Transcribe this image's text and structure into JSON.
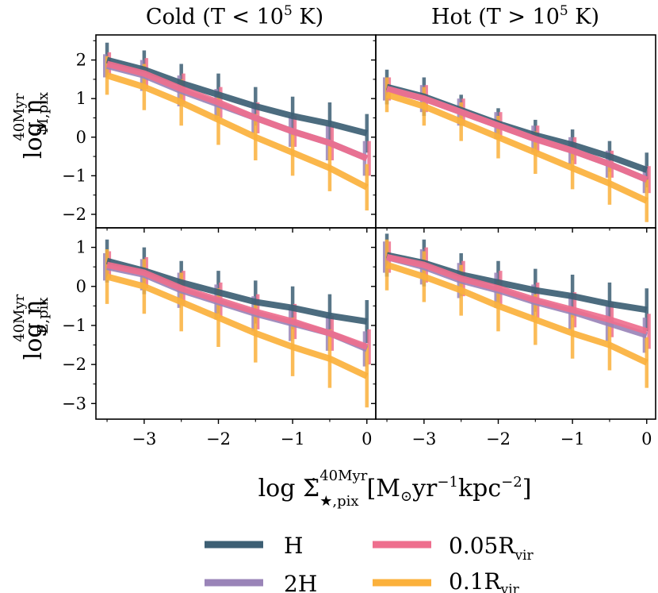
{
  "chart_data": {
    "type": "line",
    "layout": "2x2 grid of panels with shared x axis and row-shared y axes",
    "columns": [
      {
        "title_main": "Cold (T < 10",
        "title_sup": "5",
        "title_end": " K)"
      },
      {
        "title_main": "Hot (T > 10",
        "title_sup": "5",
        "title_end": " K)"
      }
    ],
    "rows": [
      {
        "ylabel_main": "log η",
        "ylabel_sup": "40Myr",
        "ylabel_sub": "M,pix",
        "ylim": [
          -2.35,
          2.65
        ],
        "yticks": [
          -2,
          -1,
          0,
          1,
          2
        ]
      },
      {
        "ylabel_main": "log η",
        "ylabel_sup": "40Myr",
        "ylabel_sub": "E,pix",
        "ylim": [
          -3.4,
          1.5
        ],
        "yticks": [
          -3,
          -2,
          -1,
          0,
          1
        ]
      }
    ],
    "xlabel_main": "log Σ̇",
    "xlabel_sup": "40Myr",
    "xlabel_sub": "★,pix",
    "xlabel_units_pre": "[M",
    "xlabel_units_sun": "⊙",
    "xlabel_units_mid1": "yr",
    "xlabel_units_exp1": "−1",
    "xlabel_units_mid2": "kpc",
    "xlabel_units_exp2": "−2",
    "xlabel_units_end": "]",
    "xlim": [
      -3.65,
      0.12
    ],
    "xticks": [
      -3,
      -2,
      -1,
      0
    ],
    "tick_labels_x": [
      "−3",
      "−2",
      "−1",
      "0"
    ],
    "tick_labels_y_top": [
      "−2",
      "−1",
      "0",
      "1",
      "2"
    ],
    "tick_labels_y_bottom": [
      "−3",
      "−2",
      "−1",
      "0",
      "1"
    ],
    "x": [
      -3.5,
      -3.0,
      -2.5,
      -2.0,
      -1.5,
      -1.0,
      -0.5,
      0.0
    ],
    "series_styles": [
      {
        "key": "H",
        "color": "#3d5f74",
        "offset": 0.0
      },
      {
        "key": "2H",
        "color": "#9a84b8",
        "offset": -0.03
      },
      {
        "key": "0.05Rvir",
        "color": "#ee6f8e",
        "offset": 0.03
      },
      {
        "key": "0.1Rvir",
        "color": "#fbb13c",
        "offset": 0.0
      }
    ],
    "panels": [
      {
        "row": 0,
        "col": 0,
        "series": [
          {
            "key": "H",
            "y": [
              2.0,
              1.75,
              1.4,
              1.1,
              0.8,
              0.55,
              0.35,
              0.1
            ],
            "err": [
              0.45,
              0.5,
              0.5,
              0.55,
              0.5,
              0.5,
              0.55,
              0.5
            ]
          },
          {
            "key": "2H",
            "y": [
              1.85,
              1.6,
              1.2,
              0.85,
              0.5,
              0.15,
              -0.15,
              -0.55
            ],
            "err": [
              0.3,
              0.4,
              0.4,
              0.4,
              0.4,
              0.4,
              0.45,
              0.45
            ]
          },
          {
            "key": "0.05Rvir",
            "y": [
              1.9,
              1.65,
              1.25,
              0.9,
              0.5,
              0.15,
              -0.15,
              -0.55
            ],
            "err": [
              0.3,
              0.4,
              0.4,
              0.4,
              0.4,
              0.4,
              0.45,
              0.45
            ]
          },
          {
            "key": "0.1Rvir",
            "y": [
              1.6,
              1.3,
              0.9,
              0.45,
              0.0,
              -0.4,
              -0.8,
              -1.3
            ],
            "err": [
              0.5,
              0.6,
              0.6,
              0.65,
              0.6,
              0.6,
              0.6,
              0.6
            ]
          }
        ]
      },
      {
        "row": 0,
        "col": 1,
        "series": [
          {
            "key": "H",
            "y": [
              1.3,
              1.05,
              0.7,
              0.35,
              0.05,
              -0.2,
              -0.5,
              -0.85
            ],
            "err": [
              0.45,
              0.5,
              0.4,
              0.4,
              0.4,
              0.4,
              0.4,
              0.45
            ]
          },
          {
            "key": "2H",
            "y": [
              1.25,
              1.0,
              0.65,
              0.3,
              -0.05,
              -0.35,
              -0.7,
              -1.1
            ],
            "err": [
              0.3,
              0.35,
              0.35,
              0.35,
              0.35,
              0.35,
              0.35,
              0.35
            ]
          },
          {
            "key": "0.05Rvir",
            "y": [
              1.25,
              1.0,
              0.65,
              0.3,
              -0.05,
              -0.35,
              -0.7,
              -1.1
            ],
            "err": [
              0.3,
              0.35,
              0.35,
              0.35,
              0.35,
              0.35,
              0.35,
              0.35
            ]
          },
          {
            "key": "0.1Rvir",
            "y": [
              1.1,
              0.8,
              0.4,
              0.0,
              -0.4,
              -0.8,
              -1.2,
              -1.65
            ],
            "err": [
              0.45,
              0.5,
              0.5,
              0.55,
              0.55,
              0.55,
              0.55,
              0.55
            ]
          }
        ]
      },
      {
        "row": 1,
        "col": 0,
        "series": [
          {
            "key": "H",
            "y": [
              0.65,
              0.4,
              0.1,
              -0.15,
              -0.4,
              -0.55,
              -0.75,
              -0.9
            ],
            "err": [
              0.55,
              0.6,
              0.55,
              0.55,
              0.55,
              0.55,
              0.55,
              0.55
            ]
          },
          {
            "key": "2H",
            "y": [
              0.5,
              0.3,
              -0.1,
              -0.4,
              -0.7,
              -0.95,
              -1.2,
              -1.6
            ],
            "err": [
              0.35,
              0.4,
              0.45,
              0.45,
              0.45,
              0.45,
              0.45,
              0.45
            ]
          },
          {
            "key": "0.05Rvir",
            "y": [
              0.55,
              0.35,
              -0.05,
              -0.35,
              -0.65,
              -0.9,
              -1.2,
              -1.55
            ],
            "err": [
              0.35,
              0.4,
              0.45,
              0.45,
              0.45,
              0.45,
              0.45,
              0.45
            ]
          },
          {
            "key": "0.1Rvir",
            "y": [
              0.25,
              0.0,
              -0.4,
              -0.8,
              -1.2,
              -1.55,
              -1.85,
              -2.3
            ],
            "err": [
              0.7,
              0.7,
              0.75,
              0.75,
              0.75,
              0.75,
              0.75,
              0.8
            ]
          }
        ]
      },
      {
        "row": 1,
        "col": 1,
        "series": [
          {
            "key": "H",
            "y": [
              0.8,
              0.6,
              0.3,
              0.1,
              -0.1,
              -0.25,
              -0.45,
              -0.6
            ],
            "err": [
              0.55,
              0.6,
              0.55,
              0.55,
              0.55,
              0.55,
              0.55,
              0.55
            ]
          },
          {
            "key": "2H",
            "y": [
              0.75,
              0.5,
              0.15,
              -0.1,
              -0.4,
              -0.65,
              -0.95,
              -1.25
            ],
            "err": [
              0.4,
              0.45,
              0.45,
              0.45,
              0.45,
              0.45,
              0.45,
              0.45
            ]
          },
          {
            "key": "0.05Rvir",
            "y": [
              0.75,
              0.55,
              0.2,
              -0.05,
              -0.35,
              -0.6,
              -0.85,
              -1.15
            ],
            "err": [
              0.4,
              0.45,
              0.45,
              0.45,
              0.45,
              0.45,
              0.45,
              0.45
            ]
          },
          {
            "key": "0.1Rvir",
            "y": [
              0.55,
              0.25,
              -0.1,
              -0.5,
              -0.85,
              -1.2,
              -1.5,
              -1.95
            ],
            "err": [
              0.65,
              0.65,
              0.65,
              0.65,
              0.65,
              0.65,
              0.65,
              0.65
            ]
          }
        ]
      }
    ],
    "legend": [
      {
        "key": "H",
        "label_main": "H",
        "label_sub": "",
        "color": "#3d5f74"
      },
      {
        "key": "0.05Rvir",
        "label_main": "0.05R",
        "label_sub": "vir",
        "color": "#ee6f8e"
      },
      {
        "key": "2H",
        "label_main": "2H",
        "label_sub": "",
        "color": "#9a84b8"
      },
      {
        "key": "0.1Rvir",
        "label_main": "0.1R",
        "label_sub": "vir",
        "color": "#fbb13c"
      }
    ],
    "legend_placement": "below plot, two columns",
    "grid": false
  }
}
